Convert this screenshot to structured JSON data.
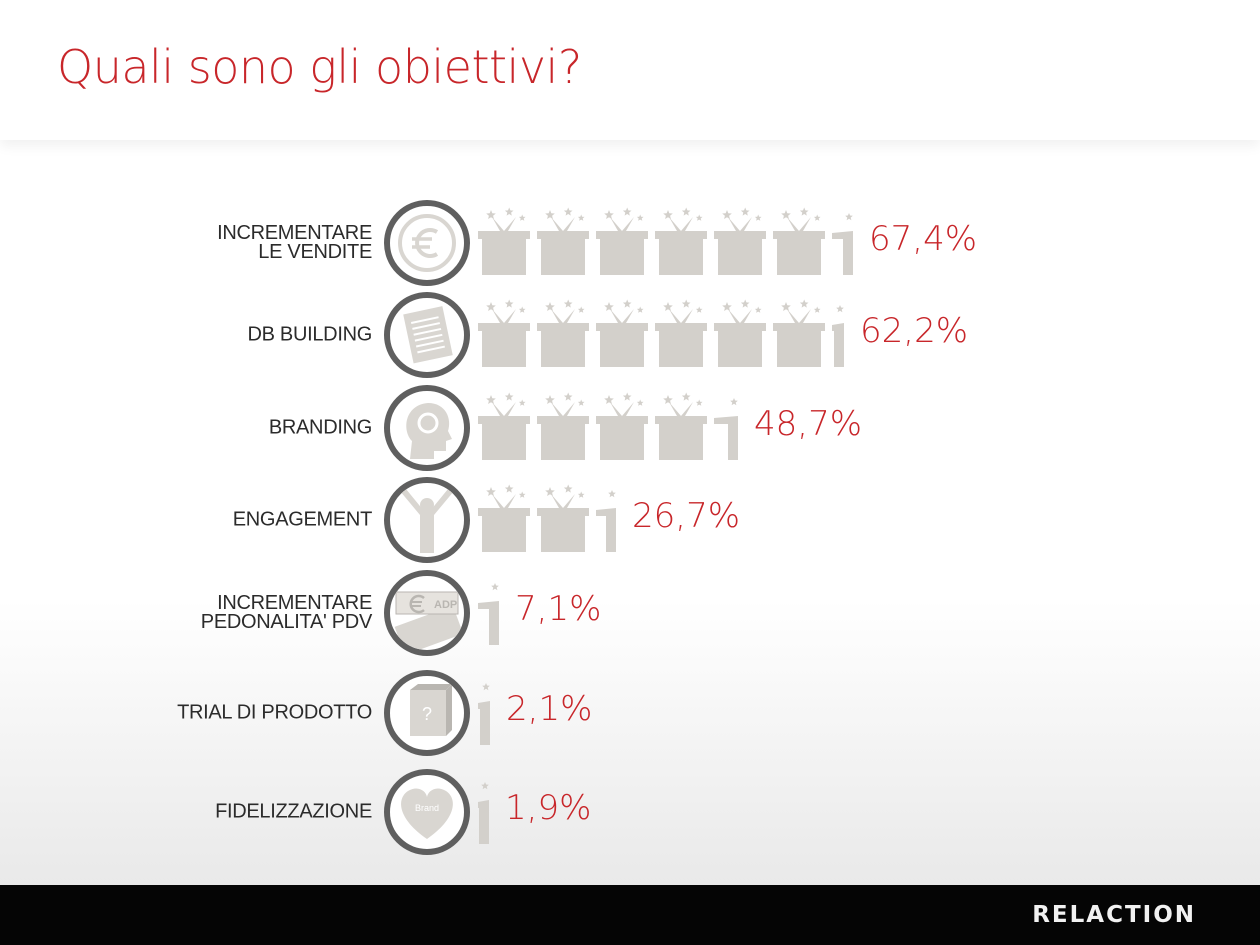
{
  "slide": {
    "title": "Quali sono gli obiettivi?",
    "logo": "RELACTION"
  },
  "icon_labels": {
    "adp_text": "ADP",
    "question_mark": "?",
    "brand_text": "Brand"
  },
  "colors": {
    "accent": "#c8262a",
    "bar_fill": "#d3d0cb",
    "ring": "#5f5f5f",
    "footer": "#050505"
  },
  "chart_data": {
    "type": "bar",
    "orientation": "horizontal",
    "pictogram": "gift-box-with-stars",
    "categories": [
      "INCREMENTARE\nLE VENDITE",
      "DB BUILDING",
      "BRANDING",
      "ENGAGEMENT",
      "INCREMENTARE\nPEDONALITA' PDV",
      "TRIAL DI PRODOTTO",
      "FIDELIZZAZIONE"
    ],
    "values": [
      67.4,
      62.2,
      48.7,
      26.7,
      7.1,
      2.1,
      1.9
    ],
    "value_labels": [
      "67,4%",
      "62,2%",
      "48,7%",
      "26,7%",
      "7,1%",
      "2,1%",
      "1,9%"
    ],
    "icons": [
      "euro-icon",
      "document-icon",
      "head-icon",
      "person-cheering-icon",
      "coupon-icon",
      "mystery-box-icon",
      "heart-brand-icon"
    ]
  }
}
